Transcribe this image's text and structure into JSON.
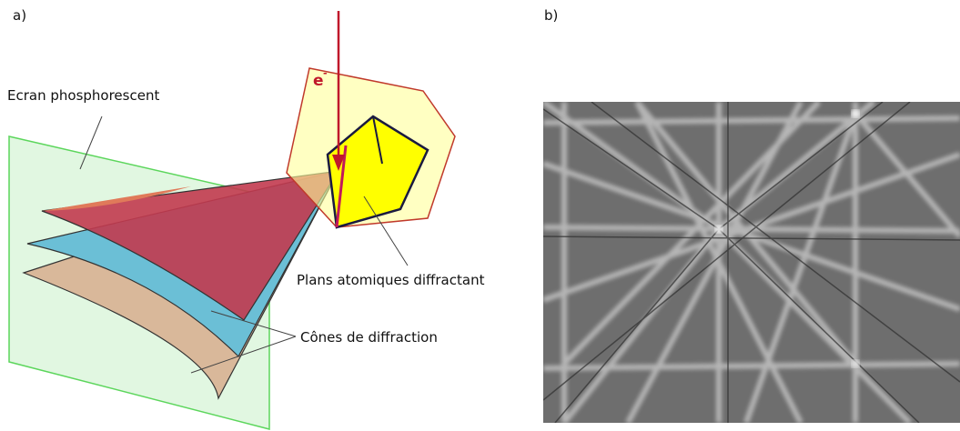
{
  "panel_a": {
    "label": "a)",
    "electron": {
      "symbol": "e",
      "charge": "-"
    },
    "screen_label": "Ecran phosphorescent",
    "planes_label": "Plans atomiques diffractant",
    "cones_label": "Cônes de diffraction"
  },
  "panel_b": {
    "label": "b)"
  }
}
